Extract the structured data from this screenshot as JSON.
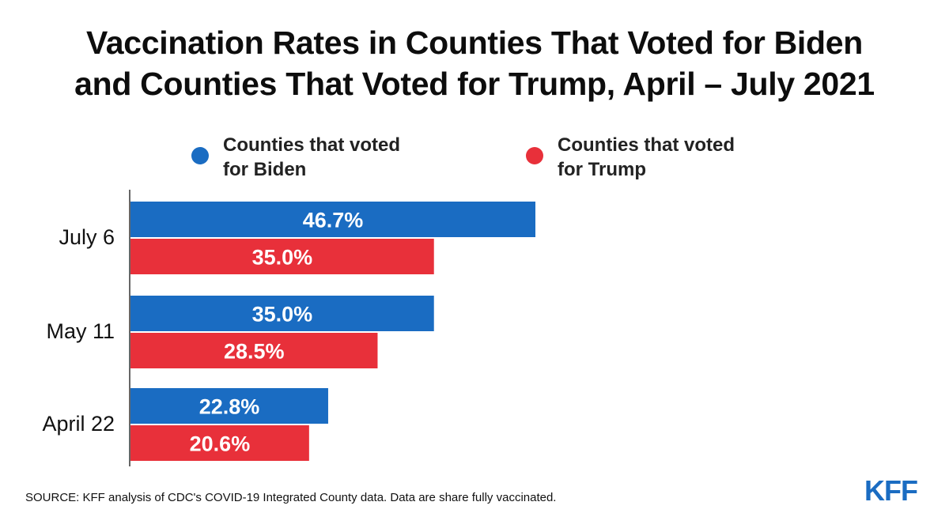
{
  "title": {
    "line1": "Vaccination Rates in Counties That Voted for Biden",
    "line2": "and Counties That Voted for Trump, April – July 2021"
  },
  "legend": {
    "biden": {
      "line1": "Counties that voted",
      "line2": "for Biden",
      "color": "#1a6cc2"
    },
    "trump": {
      "line1": "Counties that voted",
      "line2": "for Trump",
      "color": "#e8303a"
    }
  },
  "chart_data": {
    "type": "bar",
    "orientation": "horizontal",
    "title": "Vaccination Rates in Counties That Voted for Biden and Counties That Voted for Trump, April – July 2021",
    "categories": [
      "July 6",
      "May 11",
      "April 22"
    ],
    "series": [
      {
        "name": "Counties that voted for Biden",
        "values": [
          46.7,
          35.0,
          22.8
        ],
        "labels": [
          "46.7%",
          "35.0%",
          "22.8%"
        ],
        "color": "#1a6cc2"
      },
      {
        "name": "Counties that voted for Trump",
        "values": [
          35.0,
          28.5,
          20.6
        ],
        "labels": [
          "35.0%",
          "28.5%",
          "20.6%"
        ],
        "color": "#e8303a"
      }
    ],
    "unit": "%",
    "xlim": [
      0,
      100
    ],
    "grid": false,
    "legend_position": "top"
  },
  "source": "SOURCE:  KFF analysis of CDC's COVID-19 Integrated County data. Data are share fully vaccinated.",
  "logo": "KFF"
}
